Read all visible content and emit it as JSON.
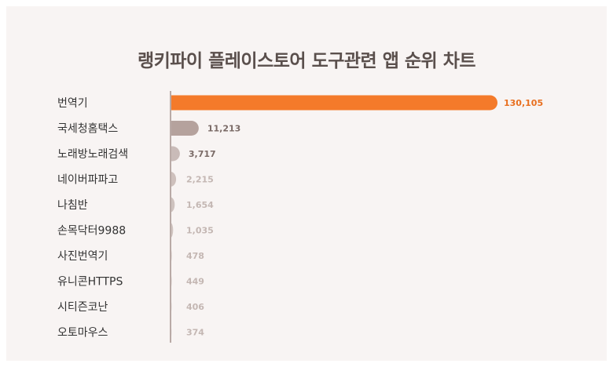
{
  "colors": {
    "highlight": "#f47a2a",
    "bar": "#b5a29d",
    "axis": "#b9aaa6",
    "value_highlight": "#e86f1f",
    "value_dark": "#7a6a66",
    "value_light": "#c4b7b3"
  },
  "chart_data": {
    "type": "bar",
    "orientation": "horizontal",
    "title": "랭키파이 플레이스토어 도구관련 앱 순위 차트",
    "categories": [
      "번역기",
      "국세청홈택스",
      "노래방노래검색",
      "네이버파파고",
      "나침반",
      "손목닥터9988",
      "사진번역기",
      "유니콘HTTPS",
      "시티즌코난",
      "오토마우스"
    ],
    "values": [
      130105,
      11213,
      3717,
      2215,
      1654,
      1035,
      478,
      449,
      406,
      374
    ],
    "value_labels": [
      "130,105",
      "11,213",
      "3,717",
      "2,215",
      "1,654",
      "1,035",
      "478",
      "449",
      "406",
      "374"
    ],
    "xlim": [
      0,
      130105
    ],
    "grid": false,
    "legend": "none"
  }
}
